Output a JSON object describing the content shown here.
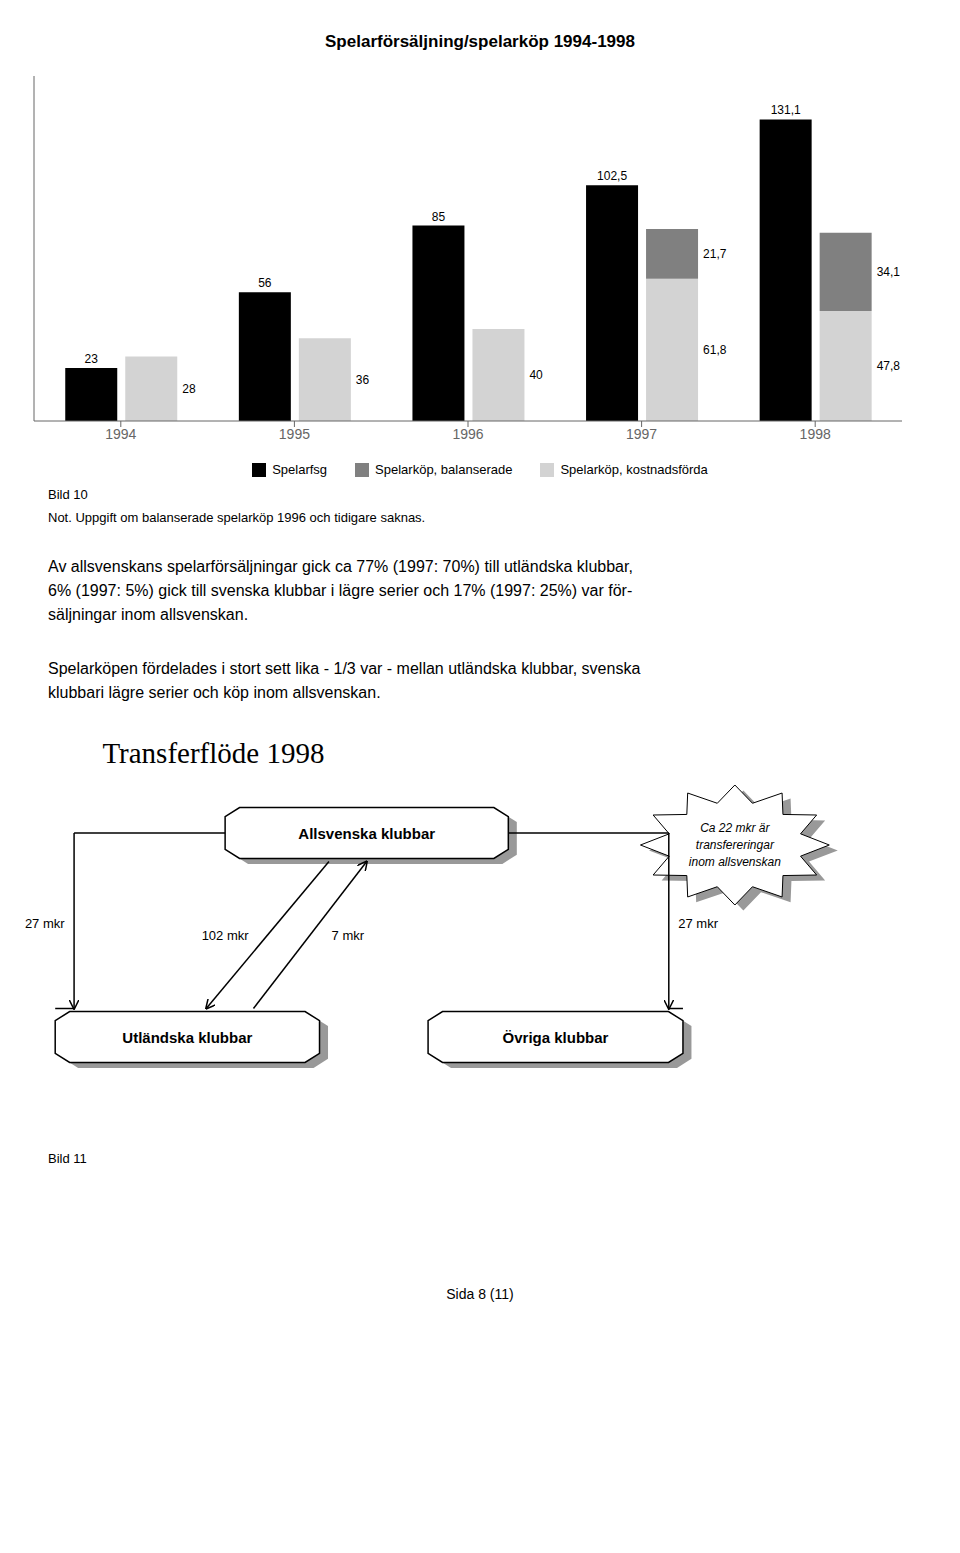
{
  "chart_data": {
    "type": "bar",
    "title": "Spelarförsäljning/spelarköp 1994-1998",
    "categories": [
      "1994",
      "1995",
      "1996",
      "1997",
      "1998"
    ],
    "series": [
      {
        "name": "Spelarfsg",
        "color": "#000000",
        "values": [
          23,
          56,
          85,
          102.5,
          131.1
        ],
        "value_labels": [
          "23",
          "56",
          "85",
          "102,5",
          "131,1"
        ]
      },
      {
        "name": "Spelarköp, balanserade",
        "color": "#808080",
        "values": [
          0,
          0,
          0,
          21.7,
          34.1
        ],
        "value_labels": [
          null,
          null,
          null,
          "21,7",
          "34,1"
        ],
        "stacked": true
      },
      {
        "name": "Spelarköp, kostnadsförda",
        "color": "#d3d3d3",
        "values": [
          28,
          36,
          40,
          61.8,
          47.8
        ],
        "value_labels": [
          "28",
          "36",
          "40",
          "61,8",
          "47,8"
        ],
        "stacked": true
      }
    ],
    "ylim": [
      0,
      150
    ],
    "grid": false,
    "legend": "bottom",
    "data_labels": true,
    "tick_labels": "x",
    "annotations": [
      "Bild 10",
      "Not. Uppgift om balanserade spelarköp 1996 och tidigare saknas.",
      "Av allsvenskans spelarförsäljningar gick ca 77% (1997: 70%) till utländska klubbar,\n6% (1997: 5%) gick till svenska klubbar i lägre serier och 17% (1997: 25%) var för-\nsäljningar inom allsvenskan.",
      "Spelarköpen fördelades i stort sett lika - 1/3 var - mellan utländska klubbar, svenska\nklubbari lägre serier och köp inom allsvenskan.",
      "Transferflöde 1998",
      "Allsvenska klubbar",
      "Utländska klubbar",
      "Övriga klubbar",
      "Ca 22 mkr är",
      "transfereringar",
      "inom allsvenskan",
      "102 mkr",
      "7 mkr",
      "27 mkr",
      "27 mkr",
      "Bild 11",
      "Sida 8 (11)"
    ]
  }
}
